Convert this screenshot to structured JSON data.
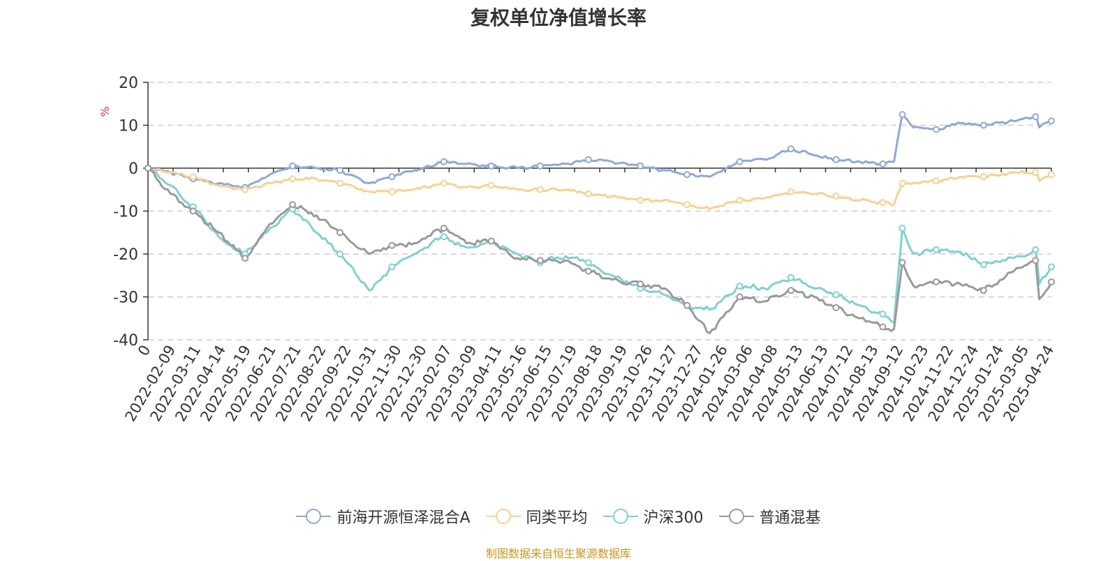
{
  "title": "复权单位净值增长率",
  "source_note": "制图数据来自恒生聚源数据库",
  "chart_data": {
    "type": "line",
    "title": "复权单位净值增长率",
    "ylabel": "%",
    "ylim": [
      -40,
      20
    ],
    "yticks": [
      20,
      10,
      0,
      -10,
      -20,
      -30,
      -40
    ],
    "grid": true,
    "legend_position": "bottom",
    "xtick_labels": [
      "0",
      "2022-02-09",
      "2022-03-11",
      "2022-04-14",
      "2022-05-19",
      "2022-06-21",
      "2022-07-21",
      "2022-08-22",
      "2022-09-22",
      "2022-10-31",
      "2022-11-30",
      "2022-12-30",
      "2023-02-07",
      "2023-03-09",
      "2023-04-11",
      "2023-05-16",
      "2023-06-15",
      "2023-07-19",
      "2023-08-18",
      "2023-09-19",
      "2023-10-26",
      "2023-11-27",
      "2023-12-27",
      "2024-01-26",
      "2024-03-06",
      "2024-04-08",
      "2024-05-13",
      "2024-06-13",
      "2024-07-12",
      "2024-08-13",
      "2024-09-12",
      "2024-10-23",
      "2024-11-22",
      "2024-12-24",
      "2025-01-24",
      "2025-03-05",
      "2025-04-24"
    ],
    "x": [
      "2022-01-10",
      "2022-02-09",
      "2022-03-11",
      "2022-04-14",
      "2022-05-19",
      "2022-06-21",
      "2022-07-21",
      "2022-08-22",
      "2022-09-22",
      "2022-10-31",
      "2022-11-30",
      "2022-12-30",
      "2023-02-07",
      "2023-03-09",
      "2023-04-11",
      "2023-05-16",
      "2023-06-15",
      "2023-07-19",
      "2023-08-18",
      "2023-09-19",
      "2023-10-26",
      "2023-11-27",
      "2023-12-27",
      "2024-01-26",
      "2024-03-06",
      "2024-04-08",
      "2024-05-13",
      "2024-06-13",
      "2024-07-12",
      "2024-08-13",
      "2024-09-12",
      "2024-09-27",
      "2024-10-08",
      "2024-10-23",
      "2024-11-22",
      "2024-12-24",
      "2025-01-24",
      "2025-03-05",
      "2025-04-03",
      "2025-04-08",
      "2025-04-24"
    ],
    "series": [
      {
        "name": "前海开源恒泽混合A",
        "color": "#8ea8d8",
        "values": [
          0,
          -1.0,
          -2.5,
          -3.5,
          -4.5,
          -1.5,
          0.5,
          0,
          -0.5,
          -3.5,
          -2.0,
          -0.5,
          1.5,
          1.0,
          0.5,
          0,
          0.5,
          1.0,
          2.0,
          1.5,
          0.5,
          -0.5,
          -1.5,
          -2.0,
          1.5,
          2.0,
          4.5,
          3.0,
          2.0,
          1.5,
          1.0,
          1.5,
          12.5,
          9.5,
          9.0,
          10.5,
          10.0,
          11.0,
          12.0,
          9.5,
          11.0
        ]
      },
      {
        "name": "同类平均",
        "color": "#f8d090",
        "values": [
          0,
          -1.0,
          -2.0,
          -4.0,
          -5.0,
          -3.5,
          -2.5,
          -2.5,
          -3.5,
          -5.5,
          -5.5,
          -5.0,
          -3.5,
          -4.5,
          -4.0,
          -5.0,
          -5.0,
          -5.0,
          -6.0,
          -6.5,
          -7.5,
          -7.5,
          -8.5,
          -9.5,
          -7.5,
          -7.0,
          -5.5,
          -6.0,
          -6.5,
          -7.5,
          -8.0,
          -8.5,
          -3.5,
          -3.5,
          -3.0,
          -2.0,
          -2.0,
          -1.0,
          -1.0,
          -3.0,
          -1.5
        ]
      },
      {
        "name": "沪深300",
        "color": "#80d0d0",
        "values": [
          0,
          -4.0,
          -9.0,
          -16.0,
          -20.0,
          -14.0,
          -9.5,
          -15.0,
          -20.0,
          -28.5,
          -23.0,
          -20.0,
          -16.0,
          -18.5,
          -17.0,
          -20.0,
          -22.0,
          -20.5,
          -22.0,
          -25.0,
          -28.0,
          -29.5,
          -32.0,
          -33.0,
          -27.5,
          -28.0,
          -25.5,
          -28.0,
          -29.5,
          -32.0,
          -34.0,
          -36.0,
          -14.0,
          -20.0,
          -19.0,
          -19.5,
          -22.5,
          -21.0,
          -19.0,
          -27.0,
          -23.0
        ]
      },
      {
        "name": "普通混基",
        "color": "#999999",
        "values": [
          0,
          -6.0,
          -10.0,
          -15.0,
          -21.0,
          -13.0,
          -8.5,
          -11.0,
          -15.0,
          -20.0,
          -18.0,
          -17.5,
          -14.0,
          -17.5,
          -17.0,
          -21.0,
          -21.5,
          -21.5,
          -24.0,
          -26.0,
          -27.0,
          -28.0,
          -32.0,
          -38.5,
          -30.0,
          -31.0,
          -28.5,
          -30.0,
          -32.5,
          -35.0,
          -37.0,
          -37.5,
          -22.0,
          -27.5,
          -26.5,
          -27.0,
          -28.5,
          -24.0,
          -21.5,
          -30.5,
          -26.5
        ]
      }
    ]
  },
  "legend": [
    {
      "label": "前海开源恒泽混合A",
      "color": "#8ea8d8"
    },
    {
      "label": "同类平均",
      "color": "#f8d090"
    },
    {
      "label": "沪深300",
      "color": "#80d0d0"
    },
    {
      "label": "普通混基",
      "color": "#999999"
    }
  ]
}
